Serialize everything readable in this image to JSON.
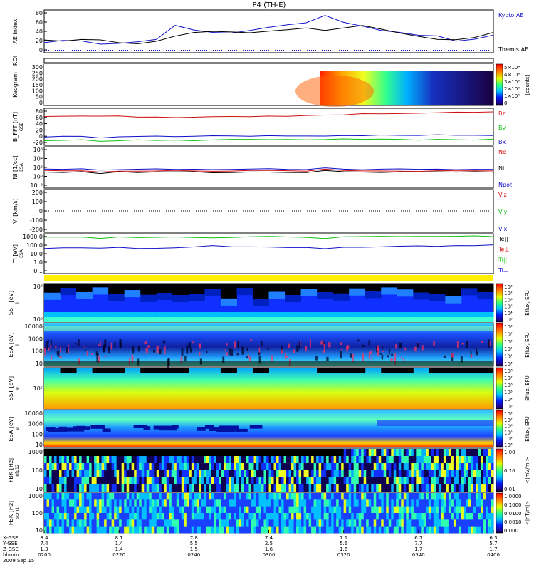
{
  "title": "P4 (TH-E)",
  "colors": {
    "blue": "#1010c8",
    "red": "#d01010",
    "green": "#10c010",
    "black": "#000000"
  },
  "chart_data": [
    {
      "type": "line",
      "ylabel": "AE Index",
      "yticks": [
        "80",
        "60",
        "40",
        "20",
        "0"
      ],
      "ylim": [
        -5,
        80
      ],
      "x": [
        0,
        5,
        10,
        15,
        20,
        25,
        30,
        35,
        40,
        45,
        50,
        55,
        60,
        65,
        70,
        75,
        80,
        85,
        90,
        95,
        100,
        105,
        110,
        115,
        120
      ],
      "series": [
        {
          "name": "Kyoto AE",
          "color": "#1010c8",
          "values": [
            15,
            20,
            18,
            12,
            14,
            16,
            22,
            50,
            40,
            36,
            34,
            40,
            45,
            50,
            55,
            70,
            55,
            48,
            40,
            35,
            30,
            28,
            18,
            22,
            30
          ]
        },
        {
          "name": "Themis AE",
          "color": "#000000",
          "values": [
            20,
            18,
            22,
            20,
            14,
            12,
            18,
            28,
            35,
            38,
            36,
            34,
            38,
            40,
            45,
            40,
            45,
            50,
            42,
            34,
            28,
            22,
            20,
            26,
            36
          ]
        }
      ]
    },
    {
      "type": "line",
      "ylabel": "ROI",
      "yticks": []
    },
    {
      "type": "heatmap",
      "ylabel": "Keogram",
      "yticks": [
        "300",
        "250",
        "200",
        "150",
        "100",
        "50",
        "0"
      ],
      "colorbar": {
        "label": "[counts]",
        "ticks": [
          "5×10⁴",
          "4×10⁴",
          "3×10⁴",
          "2×10⁴",
          "1×10⁴",
          "0"
        ]
      }
    },
    {
      "type": "line",
      "ylabel": "B_FFT [nT]",
      "sub": "GSE",
      "yticks": [
        "80",
        "60",
        "40",
        "20",
        "0",
        "-20"
      ],
      "ylim": [
        -22,
        82
      ],
      "series": [
        {
          "name": "Bz",
          "color": "#d01010",
          "values": [
            58,
            60,
            60,
            59,
            60,
            58,
            57,
            56,
            57,
            58,
            59,
            59,
            60,
            60,
            61,
            62,
            64,
            66,
            67,
            68,
            69,
            70,
            71,
            72,
            72
          ]
        },
        {
          "name": "By",
          "color": "#10c010",
          "values": [
            -8,
            -7,
            -6,
            -10,
            -8,
            -7,
            -8,
            -7,
            -8,
            -7,
            -6,
            -6,
            -5,
            -6,
            -7,
            -6,
            -5,
            -5,
            -5,
            -6,
            -7,
            -6,
            -5,
            -6,
            -5
          ]
        },
        {
          "name": "Bx",
          "color": "#1010c8",
          "values": [
            2,
            4,
            2,
            -2,
            2,
            4,
            4,
            3,
            3,
            4,
            5,
            4,
            5,
            5,
            4,
            5,
            6,
            6,
            6,
            6,
            6,
            7,
            7,
            7,
            6
          ]
        }
      ]
    },
    {
      "type": "line",
      "ylabel": "Ni [1/cc]",
      "sub": "ESA",
      "yticks": [
        "10⁶",
        "10⁴",
        "10²",
        "10⁰",
        "10⁻²"
      ],
      "ylim": [
        -3,
        7
      ],
      "series": [
        {
          "name": "Ne",
          "color": "#d01010",
          "values": [
            1.2,
            1.1,
            1.3,
            0.9,
            1.2,
            1.1,
            1.2,
            1.3,
            1.2,
            1.0,
            1.1,
            1.2,
            1.2,
            1.1,
            1.0,
            1.5,
            1.3,
            1.2,
            1.1,
            1.2,
            1.1,
            1.2,
            1.1,
            1.2,
            1.2
          ]
        },
        {
          "name": "Ni",
          "color": "#000000",
          "values": [
            0.9,
            0.8,
            1.0,
            0.6,
            0.9,
            0.8,
            0.9,
            1.0,
            0.9,
            0.7,
            0.8,
            0.9,
            0.9,
            0.8,
            0.7,
            1.2,
            1.0,
            0.9,
            0.8,
            0.9,
            0.8,
            0.9,
            0.8,
            0.9,
            0.9
          ]
        },
        {
          "name": "Npot",
          "color": "#1010c8",
          "values": [
            1.6,
            1.5,
            1.6,
            1.4,
            1.5,
            1.5,
            1.6,
            1.6,
            1.5,
            1.5,
            1.5,
            1.6,
            1.6,
            1.5,
            1.5,
            1.8,
            1.6,
            1.5,
            1.5,
            1.6,
            1.6,
            1.6,
            1.5,
            1.6,
            1.6
          ]
        }
      ]
    },
    {
      "type": "line",
      "ylabel": "Vi [km/s]",
      "yticks": [
        "200",
        "100",
        "0",
        "-100",
        "-200"
      ],
      "ylim": [
        -250,
        250
      ],
      "series": [
        {
          "name": "Viz",
          "color": "#d01010",
          "values": []
        },
        {
          "name": "Viy",
          "color": "#10c010",
          "values": []
        },
        {
          "name": "Vix",
          "color": "#1010c8",
          "values": []
        }
      ]
    },
    {
      "type": "line",
      "ylabel": "Ti [eV]",
      "sub": "ESA",
      "yticks": [
        "1000.0",
        "100.0",
        "10.0",
        "1.0",
        "0.1"
      ],
      "ylim": [
        -1.3,
        3.4
      ],
      "series": [
        {
          "name": "Te||",
          "color": "#000000",
          "values": []
        },
        {
          "name": "Te⊥",
          "color": "#d01010",
          "values": []
        },
        {
          "name": "Ti||",
          "color": "#10c010",
          "values": [
            3.0,
            2.95,
            3.0,
            2.8,
            3.0,
            2.95,
            3.0,
            3.05,
            3.0,
            2.95,
            3.0,
            3.05,
            3.05,
            3.0,
            2.95,
            2.85,
            3.0,
            3.05,
            3.05,
            3.1,
            3.05,
            3.1,
            3.05,
            3.1,
            3.1
          ]
        },
        {
          "name": "Ti⊥",
          "color": "#1010c8",
          "values": [
            1.7,
            1.75,
            1.7,
            1.65,
            1.75,
            1.7,
            1.7,
            1.8,
            1.85,
            2.0,
            1.9,
            1.85,
            1.85,
            1.8,
            1.75,
            1.65,
            1.8,
            1.85,
            1.9,
            1.9,
            1.95,
            1.95,
            2.0,
            2.0,
            2.05
          ]
        }
      ]
    },
    {
      "type": "heatmap",
      "ylabel": "SST [eV]",
      "sub": "i",
      "yticks": [
        "10⁶",
        "10⁵"
      ],
      "colorbar": {
        "label": "Eflux, EFU",
        "ticks": [
          "10⁸",
          "10⁷",
          "10⁶",
          "10⁵",
          "10⁴",
          "10³"
        ]
      }
    },
    {
      "type": "heatmap",
      "ylabel": "ESA [eV]",
      "sub": "i",
      "yticks": [
        "10000",
        "1000",
        "100",
        "10"
      ],
      "colorbar": {
        "label": "Eflux, EFU",
        "ticks": [
          "10⁸",
          "10⁷",
          "10⁶",
          "10⁵",
          "10⁴",
          "10³"
        ]
      }
    },
    {
      "type": "heatmap",
      "ylabel": "SST [eV]",
      "sub": "e",
      "yticks": [
        "10⁵"
      ],
      "colorbar": {
        "label": "Eflux, EFU",
        "ticks": [
          "10⁸",
          "10⁷",
          "10⁶",
          "10⁵",
          "10⁴",
          "10³"
        ]
      }
    },
    {
      "type": "heatmap",
      "ylabel": "ESA [eV]",
      "sub": "e",
      "yticks": [
        "10000",
        "1000",
        "100",
        "10"
      ],
      "colorbar": {
        "label": "Eflux, EFU",
        "ticks": [
          "10⁸",
          "10⁷",
          "10⁶",
          "10⁵",
          "10⁴",
          "10³"
        ]
      }
    },
    {
      "type": "heatmap",
      "ylabel": "FBK [Hz]",
      "sub": "efp12",
      "yticks": [
        "1000",
        "100",
        "10"
      ],
      "colorbar": {
        "label": "<|mV/m|>",
        "ticks": [
          "1.00",
          "0.10",
          "0.01"
        ]
      }
    },
    {
      "type": "heatmap",
      "ylabel": "FBK [Hz]",
      "sub": "scm1",
      "yticks": [
        "1000",
        "100",
        "10"
      ],
      "colorbar": {
        "label": "<|nT/m|>",
        "ticks": [
          "1.0000",
          "0.1000",
          "0.0100",
          "0.0010",
          "0.0001"
        ]
      }
    }
  ],
  "xaxis": {
    "row_labels": [
      "X-GSE",
      "Y-GSE",
      "Z-GSE",
      "hhmm",
      "2009 Sep 15"
    ],
    "ticks": [
      {
        "x": "8.4",
        "y": "7.4",
        "z": "1.3",
        "t": "0200"
      },
      {
        "x": "8.1",
        "y": "1.4",
        "z": "1.4",
        "t": "0220"
      },
      {
        "x": "7.8",
        "y": "5.5",
        "z": "1.5",
        "t": "0240"
      },
      {
        "x": "7.4",
        "y": "2.5",
        "z": "1.6",
        "t": "0300"
      },
      {
        "x": "7.1",
        "y": "5.6",
        "z": "1.6",
        "t": "0320"
      },
      {
        "x": "6.7",
        "y": "7.7",
        "z": "1.7",
        "t": "0340"
      },
      {
        "x": "6.3",
        "y": "5.7",
        "z": "1.7",
        "t": "0400"
      }
    ]
  }
}
